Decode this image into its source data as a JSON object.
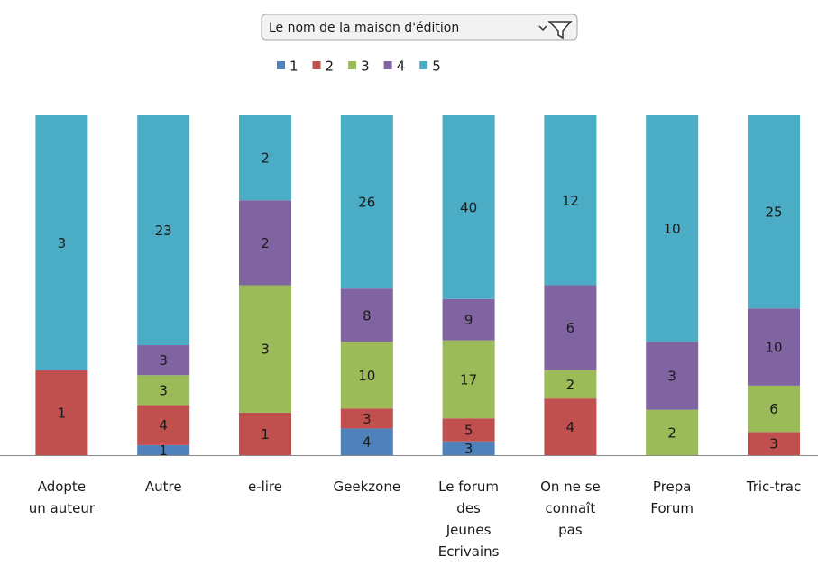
{
  "chart_data": {
    "type": "bar",
    "stacked": "percent",
    "filter_label": "Le nom de la maison d'édition",
    "categories": [
      "Adopte\nun auteur",
      "Autre",
      "e-lire",
      "Geekzone",
      "Le forum\ndes\nJeunes\nEcrivains",
      "On ne se\nconnaît\npas",
      "Prepa\nForum",
      "Tric-trac"
    ],
    "series": [
      {
        "name": "1",
        "color": "#4f81bd",
        "values": [
          null,
          1,
          null,
          4,
          3,
          null,
          null,
          null
        ]
      },
      {
        "name": "2",
        "color": "#c0504d",
        "values": [
          1,
          4,
          1,
          3,
          5,
          4,
          null,
          3
        ]
      },
      {
        "name": "3",
        "color": "#9bbb59",
        "values": [
          null,
          3,
          3,
          10,
          17,
          2,
          2,
          6
        ]
      },
      {
        "name": "4",
        "color": "#8064a2",
        "values": [
          null,
          3,
          2,
          8,
          9,
          6,
          3,
          10
        ]
      },
      {
        "name": "5",
        "color": "#4bacc6",
        "values": [
          3,
          23,
          2,
          26,
          40,
          12,
          10,
          25
        ]
      }
    ],
    "legend": "top"
  }
}
